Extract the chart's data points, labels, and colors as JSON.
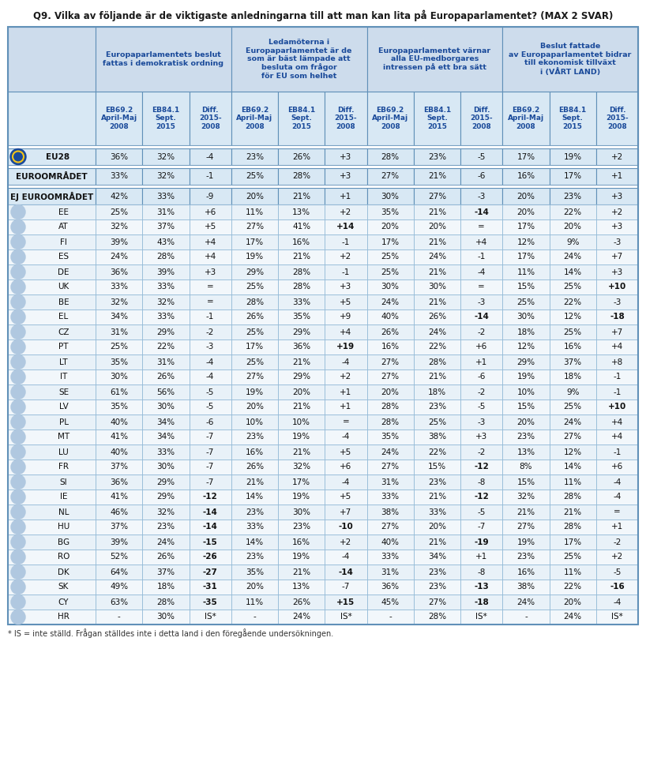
{
  "title": "Q9. Vilka av följande är de viktigaste anledningarna till att man kan lita på Europaparlamentet? (MAX 2 SVAR)",
  "col_headers": [
    "Europaparlamentets beslut\nfattas i demokratisk ordning",
    "Ledamöterna i\nEuropaparlamentet är de\nsom är bäst lämpade att\nbesluta om frågor\nför EU som helhet",
    "Europaparlamentet värnar\nalla EU-medborgares\nintressen på ett bra sätt",
    "Beslut fattade\nav Europaparlamentet bidrar\ntill ekonomisk tillväxt\ni (VÅRT LAND)"
  ],
  "sub_headers": [
    "EB69.2\nApril-Maj\n2008",
    "EB84.1\nSept.\n2015",
    "Diff.\n2015-\n2008",
    "EB69.2\nApril-Maj\n2008",
    "EB84.1\nSept.\n2015",
    "Diff.\n2015-\n2008",
    "EB69.2\nApril-Maj\n2008",
    "EB84.1\nSept.\n2015",
    "Diff.\n2015-\n2008",
    "EB69.2\nApril-Maj\n2008",
    "EB84.1\nSept.\n2015",
    "Diff.\n2015-\n2008"
  ],
  "rows": [
    [
      "EU28",
      "36%",
      "32%",
      "-4",
      "23%",
      "26%",
      "+3",
      "28%",
      "23%",
      "-5",
      "17%",
      "19%",
      "+2"
    ],
    [
      "EUROOMRÅDET",
      "33%",
      "32%",
      "-1",
      "25%",
      "28%",
      "+3",
      "27%",
      "21%",
      "-6",
      "16%",
      "17%",
      "+1"
    ],
    [
      "EJ EUROOMRÅDET",
      "42%",
      "33%",
      "-9",
      "20%",
      "21%",
      "+1",
      "30%",
      "27%",
      "-3",
      "20%",
      "23%",
      "+3"
    ],
    [
      "EE",
      "25%",
      "31%",
      "+6",
      "11%",
      "13%",
      "+2",
      "35%",
      "21%",
      "-14",
      "20%",
      "22%",
      "+2"
    ],
    [
      "AT",
      "32%",
      "37%",
      "+5",
      "27%",
      "41%",
      "+14",
      "20%",
      "20%",
      "=",
      "17%",
      "20%",
      "+3"
    ],
    [
      "FI",
      "39%",
      "43%",
      "+4",
      "17%",
      "16%",
      "-1",
      "17%",
      "21%",
      "+4",
      "12%",
      "9%",
      "-3"
    ],
    [
      "ES",
      "24%",
      "28%",
      "+4",
      "19%",
      "21%",
      "+2",
      "25%",
      "24%",
      "-1",
      "17%",
      "24%",
      "+7"
    ],
    [
      "DE",
      "36%",
      "39%",
      "+3",
      "29%",
      "28%",
      "-1",
      "25%",
      "21%",
      "-4",
      "11%",
      "14%",
      "+3"
    ],
    [
      "UK",
      "33%",
      "33%",
      "=",
      "25%",
      "28%",
      "+3",
      "30%",
      "30%",
      "=",
      "15%",
      "25%",
      "+10"
    ],
    [
      "BE",
      "32%",
      "32%",
      "=",
      "28%",
      "33%",
      "+5",
      "24%",
      "21%",
      "-3",
      "25%",
      "22%",
      "-3"
    ],
    [
      "EL",
      "34%",
      "33%",
      "-1",
      "26%",
      "35%",
      "+9",
      "40%",
      "26%",
      "-14",
      "30%",
      "12%",
      "-18"
    ],
    [
      "CZ",
      "31%",
      "29%",
      "-2",
      "25%",
      "29%",
      "+4",
      "26%",
      "24%",
      "-2",
      "18%",
      "25%",
      "+7"
    ],
    [
      "PT",
      "25%",
      "22%",
      "-3",
      "17%",
      "36%",
      "+19",
      "16%",
      "22%",
      "+6",
      "12%",
      "16%",
      "+4"
    ],
    [
      "LT",
      "35%",
      "31%",
      "-4",
      "25%",
      "21%",
      "-4",
      "27%",
      "28%",
      "+1",
      "29%",
      "37%",
      "+8"
    ],
    [
      "IT",
      "30%",
      "26%",
      "-4",
      "27%",
      "29%",
      "+2",
      "27%",
      "21%",
      "-6",
      "19%",
      "18%",
      "-1"
    ],
    [
      "SE",
      "61%",
      "56%",
      "-5",
      "19%",
      "20%",
      "+1",
      "20%",
      "18%",
      "-2",
      "10%",
      "9%",
      "-1"
    ],
    [
      "LV",
      "35%",
      "30%",
      "-5",
      "20%",
      "21%",
      "+1",
      "28%",
      "23%",
      "-5",
      "15%",
      "25%",
      "+10"
    ],
    [
      "PL",
      "40%",
      "34%",
      "-6",
      "10%",
      "10%",
      "=",
      "28%",
      "25%",
      "-3",
      "20%",
      "24%",
      "+4"
    ],
    [
      "MT",
      "41%",
      "34%",
      "-7",
      "23%",
      "19%",
      "-4",
      "35%",
      "38%",
      "+3",
      "23%",
      "27%",
      "+4"
    ],
    [
      "LU",
      "40%",
      "33%",
      "-7",
      "16%",
      "21%",
      "+5",
      "24%",
      "22%",
      "-2",
      "13%",
      "12%",
      "-1"
    ],
    [
      "FR",
      "37%",
      "30%",
      "-7",
      "26%",
      "32%",
      "+6",
      "27%",
      "15%",
      "-12",
      "8%",
      "14%",
      "+6"
    ],
    [
      "SI",
      "36%",
      "29%",
      "-7",
      "21%",
      "17%",
      "-4",
      "31%",
      "23%",
      "-8",
      "15%",
      "11%",
      "-4"
    ],
    [
      "IE",
      "41%",
      "29%",
      "-12",
      "14%",
      "19%",
      "+5",
      "33%",
      "21%",
      "-12",
      "32%",
      "28%",
      "-4"
    ],
    [
      "NL",
      "46%",
      "32%",
      "-14",
      "23%",
      "30%",
      "+7",
      "38%",
      "33%",
      "-5",
      "21%",
      "21%",
      "="
    ],
    [
      "HU",
      "37%",
      "23%",
      "-14",
      "33%",
      "23%",
      "-10",
      "27%",
      "20%",
      "-7",
      "27%",
      "28%",
      "+1"
    ],
    [
      "BG",
      "39%",
      "24%",
      "-15",
      "14%",
      "16%",
      "+2",
      "40%",
      "21%",
      "-19",
      "19%",
      "17%",
      "-2"
    ],
    [
      "RO",
      "52%",
      "26%",
      "-26",
      "23%",
      "19%",
      "-4",
      "33%",
      "34%",
      "+1",
      "23%",
      "25%",
      "+2"
    ],
    [
      "DK",
      "64%",
      "37%",
      "-27",
      "35%",
      "21%",
      "-14",
      "31%",
      "23%",
      "-8",
      "16%",
      "11%",
      "-5"
    ],
    [
      "SK",
      "49%",
      "18%",
      "-31",
      "20%",
      "13%",
      "-7",
      "36%",
      "23%",
      "-13",
      "38%",
      "22%",
      "-16"
    ],
    [
      "CY",
      "63%",
      "28%",
      "-35",
      "11%",
      "26%",
      "+15",
      "45%",
      "27%",
      "-18",
      "24%",
      "20%",
      "-4"
    ],
    [
      "HR",
      "-",
      "30%",
      "IS*",
      "-",
      "24%",
      "IS*",
      "-",
      "28%",
      "IS*",
      "-",
      "24%",
      "IS*"
    ]
  ],
  "footer": "* IS = inte ställd. Frågan ställdes inte i detta land i den föregående undersökningen.",
  "header_bg": "#cddcec",
  "subheader_bg": "#d8e8f4",
  "row_bg_light": "#e8f1f8",
  "row_bg_white": "#f2f7fb",
  "special_row_bg": "#d8e8f4",
  "border_color": "#8ab4d4",
  "outer_border": "#6090b8",
  "text_color_blue": "#1a4a9a",
  "text_color_dark": "#111111",
  "title_color": "#1a1a1a",
  "diff_bold_threshold": 10
}
